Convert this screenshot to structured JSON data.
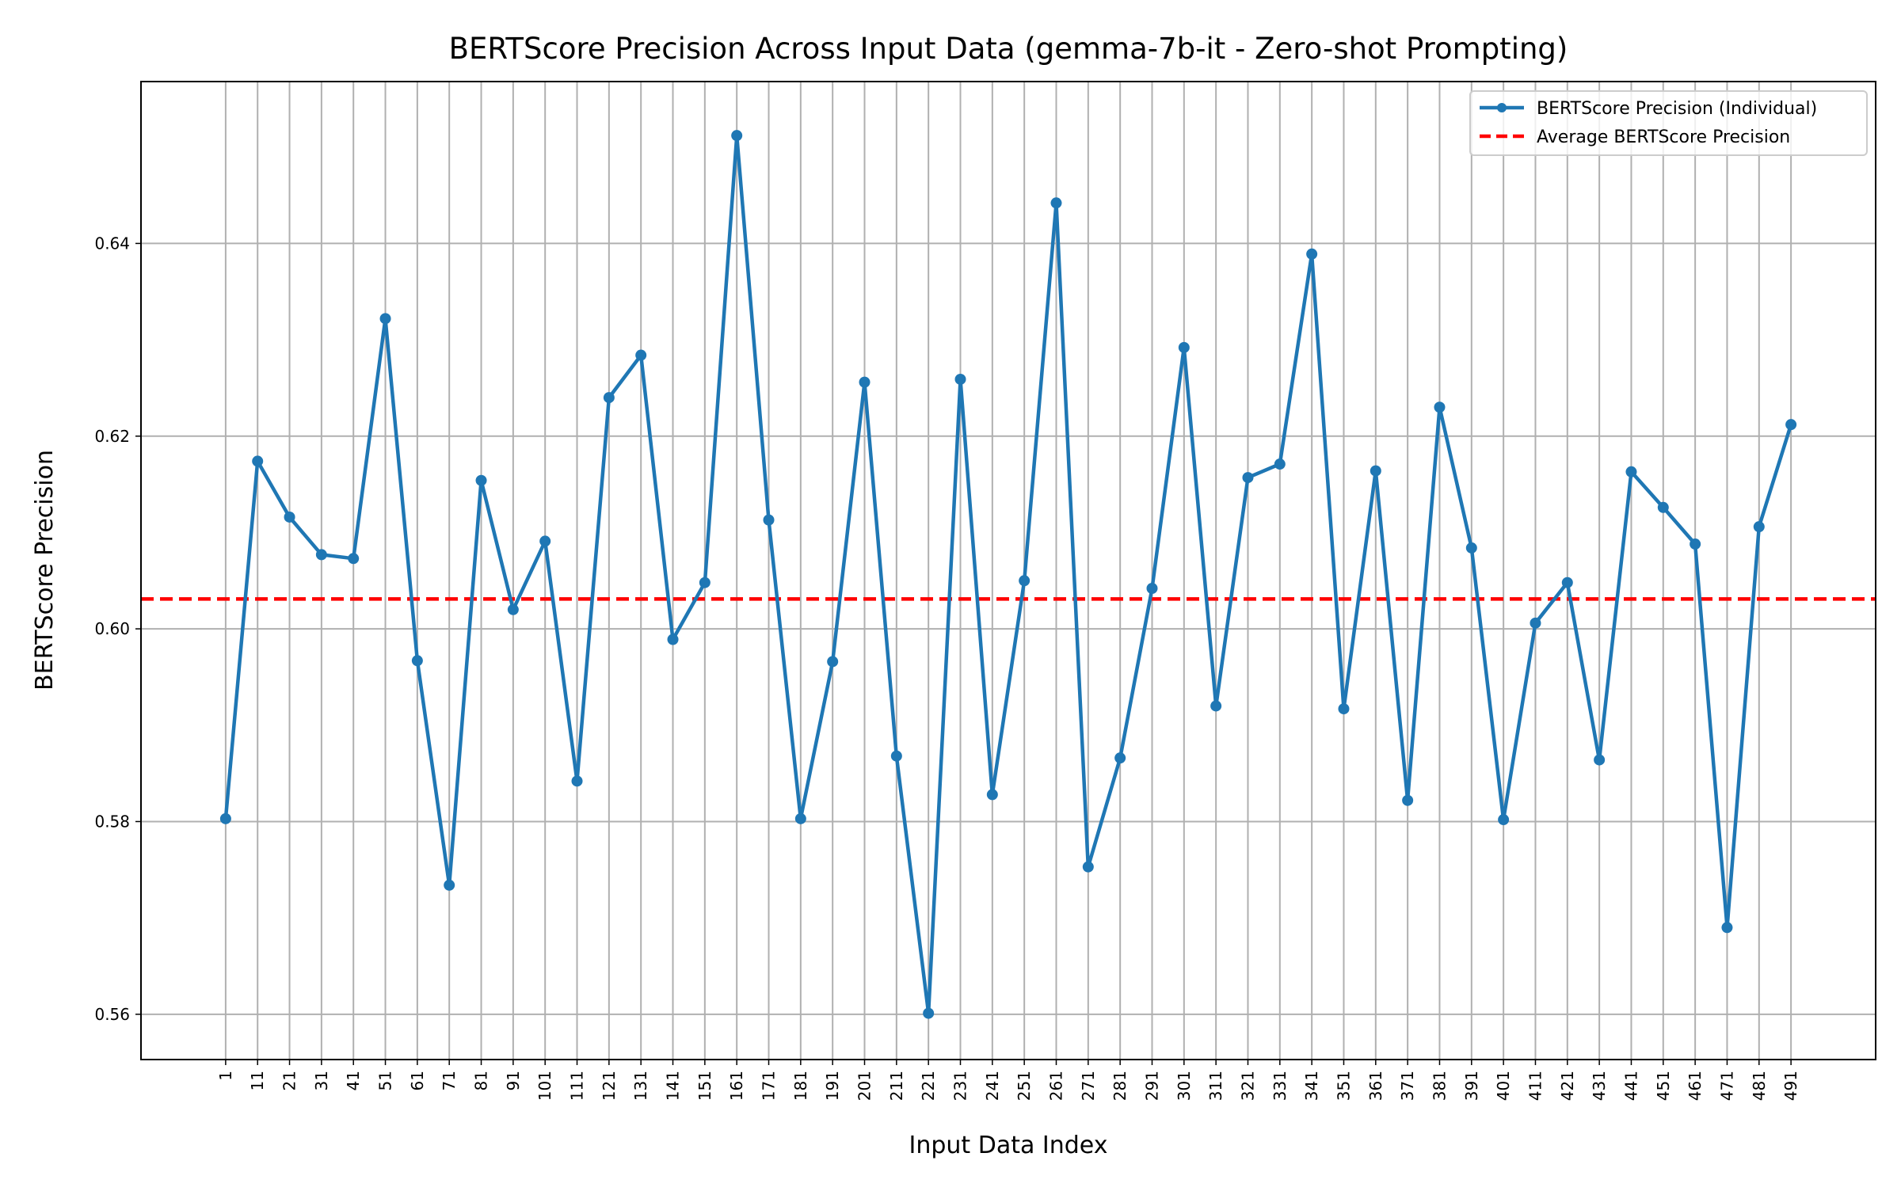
{
  "chart_data": {
    "type": "line",
    "title": "BERTScore Precision Across Input Data (gemma-7b-it - Zero-shot Prompting)",
    "xlabel": "Input Data Index",
    "ylabel": "BERTScore Precision",
    "x": [
      1,
      11,
      21,
      31,
      41,
      51,
      61,
      71,
      81,
      91,
      101,
      111,
      121,
      131,
      141,
      151,
      161,
      171,
      181,
      191,
      201,
      211,
      221,
      231,
      241,
      251,
      261,
      271,
      281,
      291,
      301,
      311,
      321,
      331,
      341,
      351,
      361,
      371,
      381,
      391,
      401,
      411,
      421,
      431,
      441,
      451,
      461,
      471,
      481,
      491
    ],
    "x_tick_labels": [
      "1",
      "11",
      "21",
      "31",
      "41",
      "51",
      "61",
      "71",
      "81",
      "91",
      "101",
      "111",
      "121",
      "131",
      "141",
      "151",
      "161",
      "171",
      "181",
      "191",
      "201",
      "211",
      "221",
      "231",
      "241",
      "251",
      "261",
      "271",
      "281",
      "291",
      "301",
      "311",
      "321",
      "331",
      "341",
      "351",
      "361",
      "371",
      "381",
      "391",
      "401",
      "411",
      "421",
      "431",
      "441",
      "451",
      "461",
      "471",
      "481",
      "491"
    ],
    "xlim": [
      -25.5,
      517.5
    ],
    "ylim": [
      0.5553,
      0.6568
    ],
    "y_ticks": [
      0.56,
      0.58,
      0.6,
      0.62,
      0.64
    ],
    "y_tick_labels": [
      "0.56",
      "0.58",
      "0.60",
      "0.62",
      "0.64"
    ],
    "grid": true,
    "legend_position": "top-right",
    "series": [
      {
        "name": "BERTScore Precision (Individual)",
        "style": "line-with-markers",
        "color": "#1f77b4",
        "values": [
          0.5803,
          0.6174,
          0.6116,
          0.6077,
          0.6073,
          0.6322,
          0.5967,
          0.5734,
          0.6154,
          0.602,
          0.6091,
          0.5842,
          0.624,
          0.6284,
          0.5989,
          0.6048,
          0.6512,
          0.6113,
          0.5803,
          0.5966,
          0.6256,
          0.5868,
          0.5601,
          0.6259,
          0.5828,
          0.605,
          0.6442,
          0.5753,
          0.5866,
          0.6042,
          0.6292,
          0.592,
          0.6157,
          0.6171,
          0.6389,
          0.5917,
          0.6164,
          0.5822,
          0.623,
          0.6084,
          0.5802,
          0.6006,
          0.6048,
          0.5864,
          0.6163,
          0.6126,
          0.6088,
          0.569,
          0.6106,
          0.6212
        ]
      },
      {
        "name": "Average BERTScore Precision",
        "style": "dashed",
        "color": "#ff0000",
        "value": 0.6031
      }
    ]
  }
}
